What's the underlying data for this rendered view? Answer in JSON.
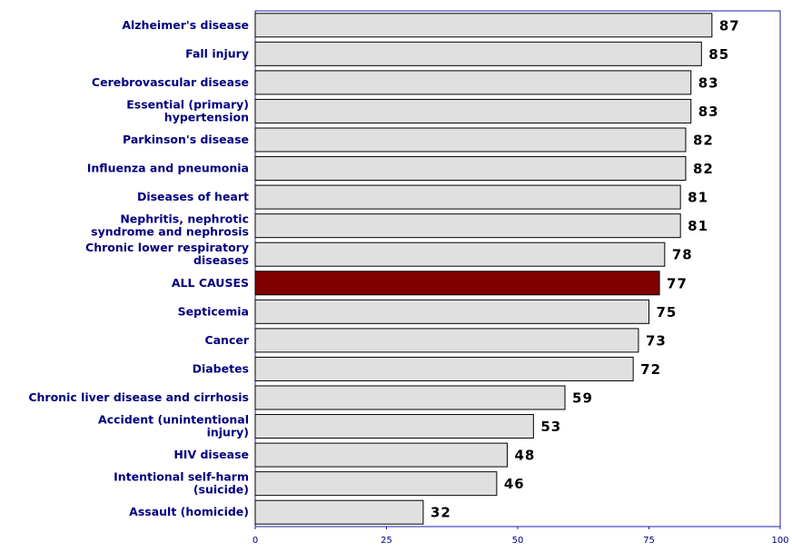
{
  "chart_data": {
    "type": "barh",
    "categories": [
      [
        "Alzheimer's disease"
      ],
      [
        "Fall injury"
      ],
      [
        "Cerebrovascular disease"
      ],
      [
        "Essential (primary)",
        "hypertension"
      ],
      [
        "Parkinson's disease"
      ],
      [
        "Influenza and pneumonia"
      ],
      [
        "Diseases of heart"
      ],
      [
        "Nephritis, nephrotic",
        "syndrome and nephrosis"
      ],
      [
        "Chronic lower respiratory",
        "diseases"
      ],
      [
        "ALL CAUSES"
      ],
      [
        "Septicemia"
      ],
      [
        "Cancer"
      ],
      [
        "Diabetes"
      ],
      [
        "Chronic liver disease and cirrhosis"
      ],
      [
        "Accident (unintentional",
        "injury)"
      ],
      [
        "HIV disease"
      ],
      [
        "Intentional self-harm",
        "(suicide)"
      ],
      [
        "Assault (homicide)"
      ]
    ],
    "values": [
      87,
      85,
      83,
      83,
      82,
      82,
      81,
      81,
      78,
      77,
      75,
      73,
      72,
      59,
      53,
      48,
      46,
      32
    ],
    "colors": [
      "#e0e0e0",
      "#e0e0e0",
      "#e0e0e0",
      "#e0e0e0",
      "#e0e0e0",
      "#e0e0e0",
      "#e0e0e0",
      "#e0e0e0",
      "#e0e0e0",
      "#800000",
      "#e0e0e0",
      "#e0e0e0",
      "#e0e0e0",
      "#e0e0e0",
      "#e0e0e0",
      "#e0e0e0",
      "#e0e0e0",
      "#e0e0e0"
    ],
    "xlim": [
      0,
      100
    ],
    "xticks": [
      0,
      25,
      50,
      75,
      100
    ]
  }
}
